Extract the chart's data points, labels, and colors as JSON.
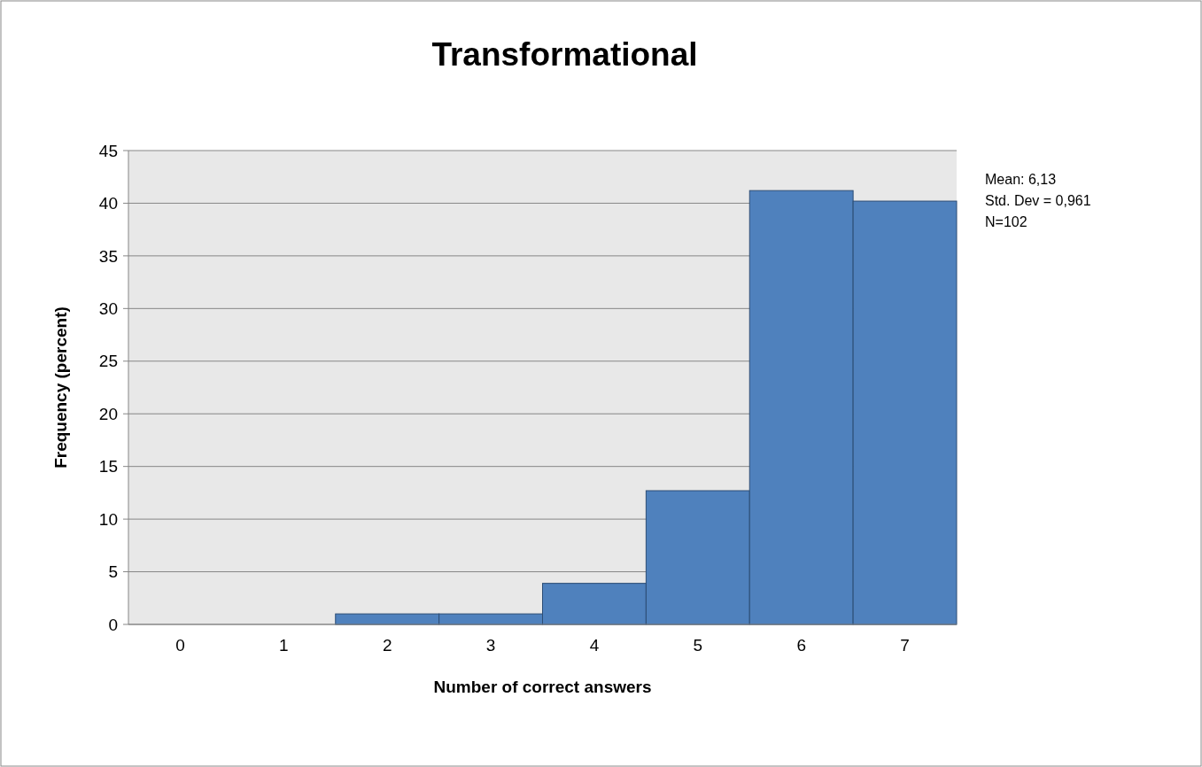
{
  "chart_data": {
    "type": "bar",
    "title": "Transformational",
    "xlabel": "Number of correct answers",
    "ylabel": "Frequency (percent)",
    "categories": [
      "0",
      "1",
      "2",
      "3",
      "4",
      "5",
      "6",
      "7"
    ],
    "values": [
      0,
      0,
      1,
      1,
      3.9,
      12.7,
      41.2,
      40.2
    ],
    "color": "#4f81bd",
    "ylim": [
      0,
      45
    ],
    "yticks": [
      0,
      5,
      10,
      15,
      20,
      25,
      30,
      35,
      40,
      45
    ],
    "grid": "y",
    "annotations": [
      "Mean: 6,13",
      "Std. Dev = 0,961",
      "N=102"
    ]
  }
}
